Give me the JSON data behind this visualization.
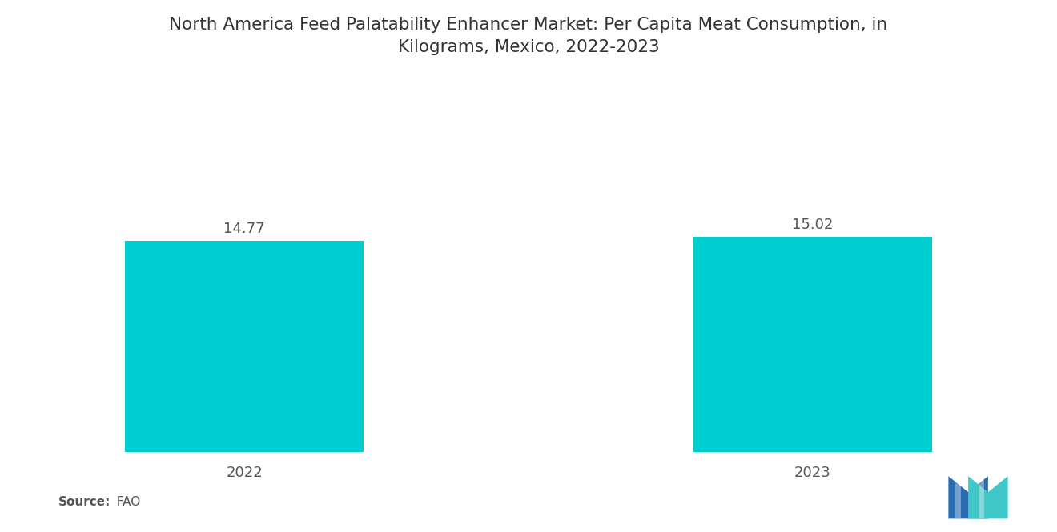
{
  "title": "North America Feed Palatability Enhancer Market: Per Capita Meat Consumption, in\nKilograms, Mexico, 2022-2023",
  "categories": [
    "2022",
    "2023"
  ],
  "values": [
    14.77,
    15.02
  ],
  "bar_color": "#00CED1",
  "background_color": "#ffffff",
  "value_labels": [
    "14.77",
    "15.02"
  ],
  "source_bold": "Source:",
  "source_normal": "  FAO",
  "ylim_min": 0,
  "ylim_max": 26,
  "bar_width": 0.42,
  "title_fontsize": 15.5,
  "label_fontsize": 13,
  "tick_fontsize": 13,
  "source_fontsize": 11,
  "logo_blue": "#2B6CB0",
  "logo_teal": "#40C8C8"
}
